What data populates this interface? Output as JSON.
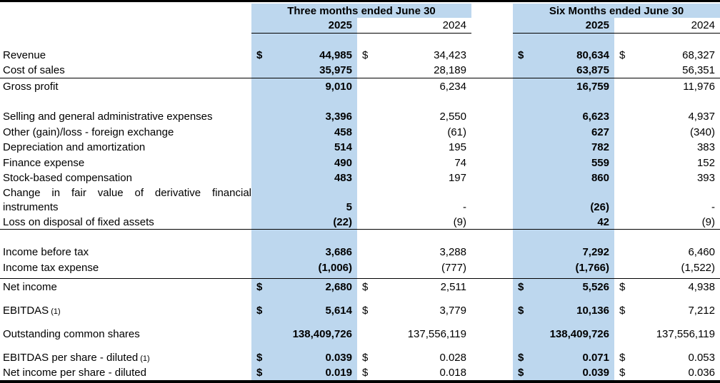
{
  "colors": {
    "highlight_blue": "#BDD7EE",
    "border_black": "#000000"
  },
  "header": {
    "three_months": "Three months ended June 30",
    "six_months": "Six Months ended June 30",
    "year_3mo_2025": "2025",
    "year_3mo_2024": "2024",
    "year_6mo_2025": "2025",
    "year_6mo_2024": "2024"
  },
  "rows": [
    {
      "label": "Revenue",
      "d1": "$",
      "v1": "44,985",
      "d2": "$",
      "v2": "34,423",
      "d3": "$",
      "v3": "80,634",
      "d4": "$",
      "v4": "68,327"
    },
    {
      "label": "Cost of sales",
      "d1": "",
      "v1": "35,975",
      "d2": "",
      "v2": "28,189",
      "d3": "",
      "v3": "63,875",
      "d4": "",
      "v4": "56,351"
    },
    {
      "label": "Gross profit",
      "d1": "",
      "v1": "9,010",
      "d2": "",
      "v2": "6,234",
      "d3": "",
      "v3": "16,759",
      "d4": "",
      "v4": "11,976"
    },
    {
      "label": "Selling and general administrative expenses",
      "d1": "",
      "v1": "3,396",
      "d2": "",
      "v2": "2,550",
      "d3": "",
      "v3": "6,623",
      "d4": "",
      "v4": "4,937"
    },
    {
      "label": "Other (gain)/loss - foreign exchange",
      "d1": "",
      "v1": "458",
      "d2": "",
      "v2": "(61)",
      "d3": "",
      "v3": "627",
      "d4": "",
      "v4": "(340)"
    },
    {
      "label": "Depreciation and amortization",
      "d1": "",
      "v1": "514",
      "d2": "",
      "v2": "195",
      "d3": "",
      "v3": "782",
      "d4": "",
      "v4": "383"
    },
    {
      "label": "Finance expense",
      "d1": "",
      "v1": "490",
      "d2": "",
      "v2": "74",
      "d3": "",
      "v3": "559",
      "d4": "",
      "v4": "152"
    },
    {
      "label": "Stock-based compensation",
      "d1": "",
      "v1": "483",
      "d2": "",
      "v2": "197",
      "d3": "",
      "v3": "860",
      "d4": "",
      "v4": "393"
    },
    {
      "label": "Change in fair value of derivative financial instruments",
      "d1": "",
      "v1": "5",
      "d2": "",
      "v2": "-",
      "d3": "",
      "v3": "(26)",
      "d4": "",
      "v4": "-"
    },
    {
      "label": "Loss on disposal of fixed assets",
      "d1": "",
      "v1": "(22)",
      "d2": "",
      "v2": "(9)",
      "d3": "",
      "v3": "42",
      "d4": "",
      "v4": "(9)"
    },
    {
      "label": "Income before tax",
      "d1": "",
      "v1": "3,686",
      "d2": "",
      "v2": "3,288",
      "d3": "",
      "v3": "7,292",
      "d4": "",
      "v4": "6,460"
    },
    {
      "label": "Income tax expense",
      "d1": "",
      "v1": "(1,006)",
      "d2": "",
      "v2": "(777)",
      "d3": "",
      "v3": "(1,766)",
      "d4": "",
      "v4": "(1,522)"
    },
    {
      "label": "Net income",
      "d1": "$",
      "v1": "2,680",
      "d2": "$",
      "v2": "2,511",
      "d3": "$",
      "v3": "5,526",
      "d4": "$",
      "v4": "4,938"
    },
    {
      "label": "EBITDAS",
      "note": "(1)",
      "d1": "$",
      "v1": "5,614",
      "d2": "$",
      "v2": "3,779",
      "d3": "$",
      "v3": "10,136",
      "d4": "$",
      "v4": "7,212"
    },
    {
      "label": "Outstanding common shares",
      "d1": "",
      "v1": "138,409,726",
      "d2": "",
      "v2": "137,556,119",
      "d3": "",
      "v3": "138,409,726",
      "d4": "",
      "v4": "137,556,119"
    },
    {
      "label": "EBITDAS per share - diluted",
      "note": "(1)",
      "d1": "$",
      "v1": "0.039",
      "d2": "$",
      "v2": "0.028",
      "d3": "$",
      "v3": "0.071",
      "d4": "$",
      "v4": "0.053"
    },
    {
      "label": "Net income per share - diluted",
      "d1": "$",
      "v1": "0.019",
      "d2": "$",
      "v2": "0.018",
      "d3": "$",
      "v3": "0.039",
      "d4": "$",
      "v4": "0.036"
    }
  ]
}
